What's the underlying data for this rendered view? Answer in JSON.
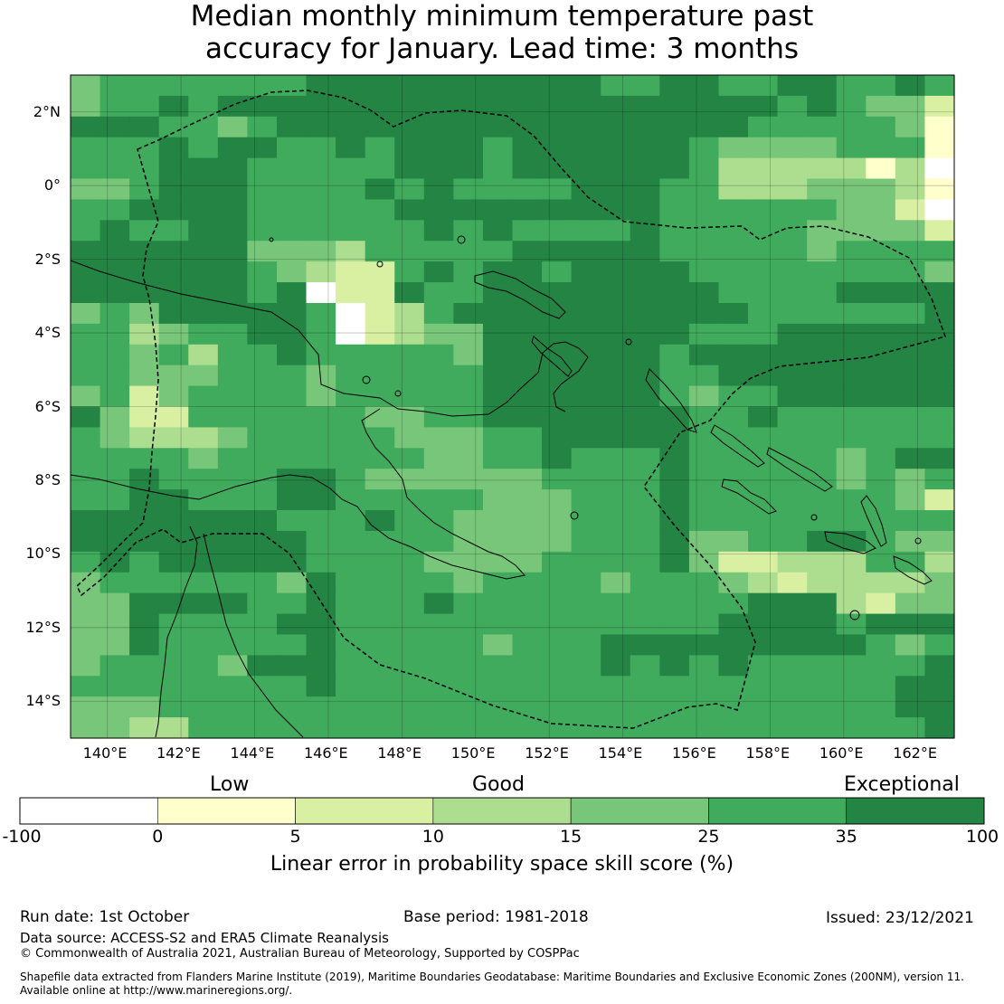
{
  "title": {
    "line1": "Median monthly minimum temperature past",
    "line2": "accuracy for January. Lead time: 3 months"
  },
  "map": {
    "lat_labels": [
      "2°N",
      "0°",
      "2°S",
      "4°S",
      "6°S",
      "8°S",
      "10°S",
      "12°S",
      "14°S"
    ],
    "lon_labels": [
      "140°E",
      "142°E",
      "144°E",
      "146°E",
      "148°E",
      "150°E",
      "152°E",
      "154°E",
      "156°E",
      "158°E",
      "160°E",
      "162°E"
    ],
    "lon_range": [
      139.0,
      163.0
    ],
    "lat_range": [
      -15.0,
      3.0
    ],
    "cell_size_deg": 0.83,
    "skill_levels": [
      "<0 (no skill)",
      "0-5",
      "5-10",
      "10-15",
      "15-25",
      "25-35",
      "35-100"
    ],
    "skill_grid_note": "grid rows are from north to south, columns from west to east; values are skill-category indices 0-6",
    "skill_grid": [
      "455555556666666666556655665565",
      "455656666666666666666666565442",
      "666554566666666666666665555541",
      "555656655656665666666544445551",
      "555666555556665666666533333130",
      "445666555565655556665533344431",
      "556666555556666666665555554420",
      "565566555555656555565555544442",
      "666666444355555666665555545555",
      "666666543225656656666555555554",
      "666666560226556666666655556666",
      "454666665023566666666665555556",
      "553455665023446666666555666666",
      "554535565555546666665666666666",
      "554445554555556666665566666666",
      "452455554555556666665455666666",
      "642255555544556666666556555555",
      "543334555554445566666555555555",
      "555545555555445565556555554566",
      "556555566544444455556555554545",
      "556655566555554445556555555542",
      "666666655565544445556555555555",
      "666666665555544445556445566544",
      "565666665555444455556422333553",
      "455555546555545555455543233334",
      "446666556555655555555556663244",
      "446555566555555555555566665666",
      "446555556555554555666666666545",
      "455554666555555555656565555556",
      "555555556555555555555555555566",
      "444555555555555555555555555566",
      "443355555555555555555555555556"
    ]
  },
  "colorbar": {
    "word_low": "Low",
    "word_good": "Good",
    "word_exceptional": "Exceptional",
    "ticks": [
      "-100",
      "0",
      "5",
      "10",
      "15",
      "25",
      "35",
      "100"
    ],
    "colors": [
      "#ffffff",
      "#ffffcc",
      "#d9f0a3",
      "#addd8e",
      "#78c679",
      "#41ab5d",
      "#238443"
    ],
    "label": "Linear error in probability space skill score (%)"
  },
  "footer": {
    "run_date": "Run date: 1st October",
    "base_period": "Base period: 1981-2018",
    "issued": "Issued: 23/12/2021",
    "data_source": "Data source: ACCESS-S2 and ERA5 Climate Reanalysis",
    "copyright": "© Commonwealth of Australia 2021, Australian Bureau of Meteorology, Supported by COSPPac",
    "shapefile_line1": "Shapefile data extracted from Flanders Marine Institute (2019), Maritime Boundaries Geodatabase: Maritime Boundaries and Exclusive Economic Zones (200NM), version 11.",
    "shapefile_line2": "Available online at http://www.marineregions.org/."
  }
}
